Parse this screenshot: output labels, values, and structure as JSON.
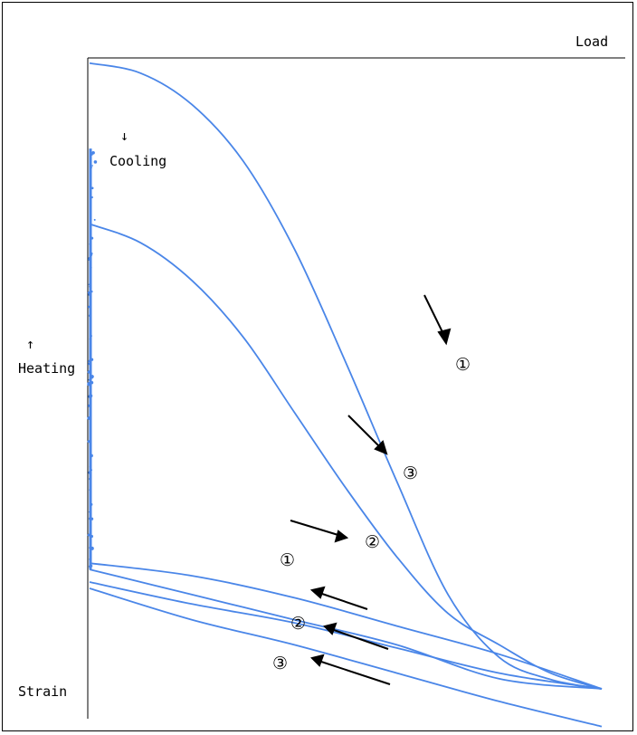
{
  "chart_data": {
    "type": "line",
    "title": "",
    "labels": {
      "x_axis": "Load",
      "y_axis": "Strain",
      "heating": "Heating",
      "cooling": "Cooling",
      "heating_arrow": "↑",
      "cooling_arrow": "↓"
    },
    "series_color": "#4a86e8",
    "grid": false,
    "legend": "none",
    "series": [
      {
        "id": "c1-loading",
        "points": [
          [
            0,
            0.996
          ],
          [
            0.1,
            0.98
          ],
          [
            0.2,
            0.93
          ],
          [
            0.3,
            0.84
          ],
          [
            0.4,
            0.7
          ],
          [
            0.5,
            0.52
          ],
          [
            0.6,
            0.33
          ],
          [
            0.7,
            0.15
          ],
          [
            0.8,
            0.05
          ],
          [
            0.9,
            0.015
          ],
          [
            1.0,
            0.0
          ]
        ]
      },
      {
        "id": "c1-unloading",
        "points": [
          [
            1.0,
            0.0
          ],
          [
            0.8,
            0.016
          ],
          [
            0.6,
            0.07
          ],
          [
            0.4,
            0.11
          ],
          [
            0.2,
            0.15
          ],
          [
            0.0,
            0.19
          ]
        ]
      },
      {
        "id": "c2-loading",
        "points": [
          [
            0,
            0.2
          ],
          [
            0.2,
            0.18
          ],
          [
            0.4,
            0.145
          ],
          [
            0.6,
            0.1
          ],
          [
            0.8,
            0.055
          ],
          [
            1.0,
            0.0
          ]
        ]
      },
      {
        "id": "c2-unloading",
        "points": [
          [
            1.0,
            0.0
          ],
          [
            0.8,
            0.025
          ],
          [
            0.6,
            0.065
          ],
          [
            0.4,
            0.105
          ],
          [
            0.2,
            0.135
          ],
          [
            0.0,
            0.17
          ]
        ]
      },
      {
        "id": "c3-loading",
        "points": [
          [
            0,
            0.74
          ],
          [
            0.1,
            0.71
          ],
          [
            0.2,
            0.65
          ],
          [
            0.3,
            0.56
          ],
          [
            0.4,
            0.44
          ],
          [
            0.5,
            0.32
          ],
          [
            0.6,
            0.21
          ],
          [
            0.7,
            0.12
          ],
          [
            0.8,
            0.07
          ],
          [
            0.9,
            0.025
          ],
          [
            1.0,
            0.0
          ]
        ]
      },
      {
        "id": "c3-unloading",
        "points": [
          [
            1.0,
            -0.06
          ],
          [
            0.8,
            -0.02
          ],
          [
            0.6,
            0.025
          ],
          [
            0.4,
            0.07
          ],
          [
            0.2,
            0.11
          ],
          [
            0.0,
            0.16
          ]
        ]
      }
    ],
    "step_markers": [
      {
        "text": "①",
        "curve": "c1-loading"
      },
      {
        "text": "③",
        "curve": "c3-loading"
      },
      {
        "text": "②",
        "curve": "c2-loading"
      },
      {
        "text": "①",
        "curve": "c1-unloading"
      },
      {
        "text": "②",
        "curve": "c2-unloading"
      },
      {
        "text": "③",
        "curve": "c3-unloading"
      }
    ]
  }
}
